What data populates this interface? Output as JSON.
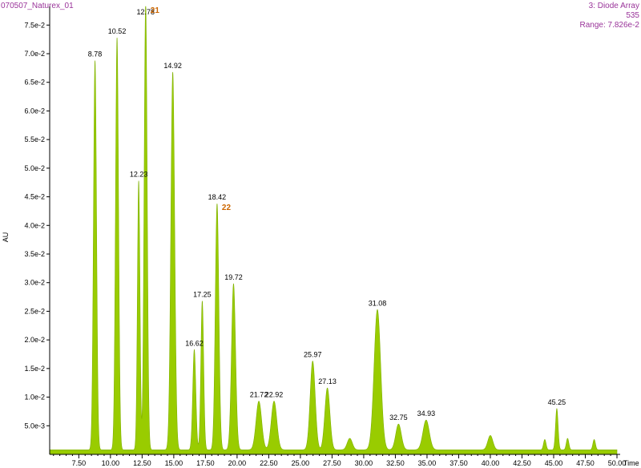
{
  "header": {
    "sample_name": "070507_Naturex_01",
    "trace_name": "3: Diode Array",
    "wavelength": "535",
    "range_text": "Range: 7.826e-2"
  },
  "colors": {
    "trace": "#99cc00",
    "trace_stroke": "#7fb000",
    "header_text": "#993399",
    "annotation": "#cc6600"
  },
  "chart_data": {
    "type": "area",
    "title": "",
    "xlabel": "Time",
    "ylabel": "AU",
    "xlim": [
      5.2,
      50.0
    ],
    "ylim": [
      0.0,
      0.07826
    ],
    "baseline": 0.0008,
    "x_ticks": [
      7.5,
      10.0,
      12.5,
      15.0,
      17.5,
      20.0,
      22.5,
      25.0,
      27.5,
      30.0,
      32.5,
      35.0,
      37.5,
      40.0,
      42.5,
      45.0,
      47.5,
      50.0
    ],
    "x_tick_labels": [
      "7.50",
      "10.00",
      "12.50",
      "15.00",
      "17.50",
      "20.00",
      "22.50",
      "25.00",
      "27.50",
      "30.00",
      "32.50",
      "35.00",
      "37.50",
      "40.00",
      "42.50",
      "45.00",
      "47.50",
      "50.00"
    ],
    "y_ticks": [
      0.005,
      0.01,
      0.015,
      0.02,
      0.025,
      0.03,
      0.035,
      0.04,
      0.045,
      0.05,
      0.055,
      0.06,
      0.065,
      0.07,
      0.075
    ],
    "y_tick_labels": [
      "5.0e-3",
      "1.0e-2",
      "1.5e-2",
      "2.0e-2",
      "2.5e-2",
      "3.0e-2",
      "3.5e-2",
      "4.0e-2",
      "4.5e-2",
      "5.0e-2",
      "5.5e-2",
      "6.0e-2",
      "6.5e-2",
      "7.0e-2",
      "7.5e-2"
    ],
    "peaks": [
      {
        "rt": 8.78,
        "label": "8.78",
        "height": 0.068,
        "width": 0.12
      },
      {
        "rt": 10.52,
        "label": "10.52",
        "height": 0.072,
        "width": 0.12
      },
      {
        "rt": 12.23,
        "label": "12.23",
        "height": 0.047,
        "width": 0.1
      },
      {
        "rt": 12.78,
        "label": "12.78",
        "height": 0.0782,
        "width": 0.12
      },
      {
        "rt": 14.92,
        "label": "14.92",
        "height": 0.066,
        "width": 0.15
      },
      {
        "rt": 16.62,
        "label": "16.62",
        "height": 0.0175,
        "width": 0.12
      },
      {
        "rt": 17.25,
        "label": "17.25",
        "height": 0.026,
        "width": 0.11
      },
      {
        "rt": 18.42,
        "label": "18.42",
        "height": 0.043,
        "width": 0.14
      },
      {
        "rt": 19.72,
        "label": "19.72",
        "height": 0.029,
        "width": 0.16
      },
      {
        "rt": 21.72,
        "label": "21.72",
        "height": 0.0085,
        "width": 0.22
      },
      {
        "rt": 22.92,
        "label": "22.92",
        "height": 0.0085,
        "width": 0.22
      },
      {
        "rt": 25.97,
        "label": "25.97",
        "height": 0.0155,
        "width": 0.2
      },
      {
        "rt": 27.13,
        "label": "27.13",
        "height": 0.0108,
        "width": 0.2
      },
      {
        "rt": 28.9,
        "label": "",
        "height": 0.002,
        "width": 0.2
      },
      {
        "rt": 31.08,
        "label": "31.08",
        "height": 0.0245,
        "width": 0.26
      },
      {
        "rt": 32.75,
        "label": "32.75",
        "height": 0.0045,
        "width": 0.22
      },
      {
        "rt": 34.93,
        "label": "34.93",
        "height": 0.0052,
        "width": 0.25
      },
      {
        "rt": 40.0,
        "label": "",
        "height": 0.0025,
        "width": 0.2
      },
      {
        "rt": 44.3,
        "label": "",
        "height": 0.0018,
        "width": 0.1
      },
      {
        "rt": 45.25,
        "label": "45.25",
        "height": 0.0072,
        "width": 0.1
      },
      {
        "rt": 46.1,
        "label": "",
        "height": 0.002,
        "width": 0.1
      },
      {
        "rt": 48.2,
        "label": "",
        "height": 0.0018,
        "width": 0.1
      }
    ],
    "annotations": [
      {
        "text": "21",
        "rt": 12.78
      },
      {
        "text": "22",
        "rt": 18.42
      }
    ]
  }
}
